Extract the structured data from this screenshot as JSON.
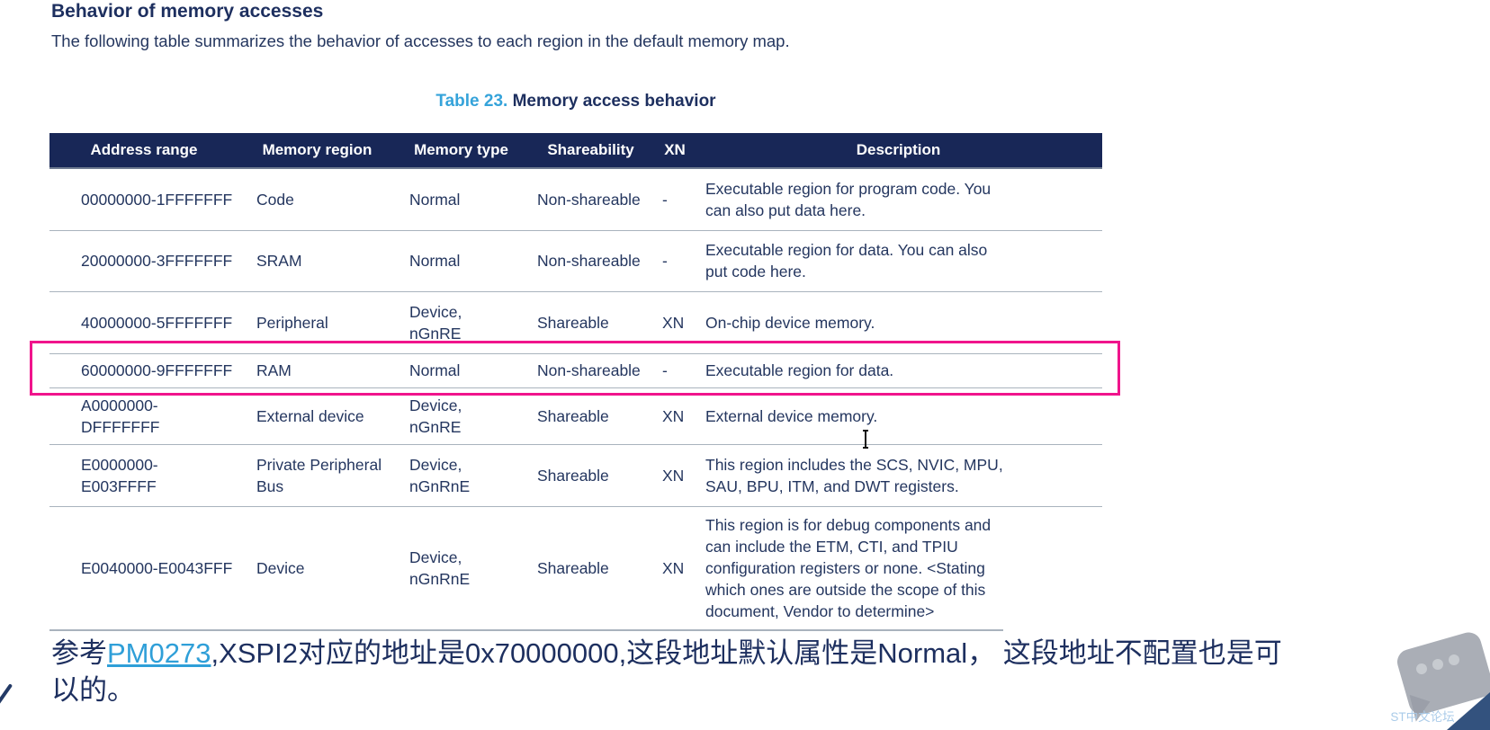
{
  "page": {
    "heading": "Behavior of memory accesses",
    "intro": "The following table summarizes the behavior of accesses to each region in the default memory map.",
    "caption_number": "Table 23.",
    "caption_title": " Memory access behavior"
  },
  "table": {
    "columns": [
      "Address range",
      "Memory region",
      "Memory type",
      "Shareability",
      "XN",
      "Description"
    ],
    "rows": [
      {
        "address": "00000000-1FFFFFFF",
        "region": "Code",
        "type": "Normal",
        "share": "Non-shareable",
        "xn": "-",
        "desc": "Executable region for program code. You\ncan also put data here.",
        "highlighted": false
      },
      {
        "address": "20000000-3FFFFFFF",
        "region": "SRAM",
        "type": "Normal",
        "share": "Non-shareable",
        "xn": "-",
        "desc": "Executable region for data. You can also\nput code here.",
        "highlighted": false
      },
      {
        "address": "40000000-5FFFFFFF",
        "region": "Peripheral",
        "type": "Device,\nnGnRE",
        "share": "Shareable",
        "xn": "XN",
        "desc": "On-chip device memory.",
        "highlighted": false
      },
      {
        "address": "60000000-9FFFFFFF",
        "region": "RAM",
        "type": "Normal",
        "share": "Non-shareable",
        "xn": "-",
        "desc": "Executable region for data.",
        "highlighted": true
      },
      {
        "address": "A0000000-DFFFFFFF",
        "region": "External device",
        "type": "Device,\nnGnRE",
        "share": "Shareable",
        "xn": "XN",
        "desc": "External device memory.",
        "highlighted": false
      },
      {
        "address": "E0000000-E003FFFF",
        "region": "Private Peripheral\nBus",
        "type": "Device,\nnGnRnE",
        "share": "Shareable",
        "xn": "XN",
        "desc": "This region includes the SCS, NVIC, MPU,\nSAU, BPU, ITM, and DWT registers.",
        "highlighted": false
      },
      {
        "address": "E0040000-E0043FFF",
        "region": "Device",
        "type": "Device,\nnGnRnE",
        "share": "Shareable",
        "xn": "XN",
        "desc": "This region is for debug components and\ncan include the ETM, CTI, and TPIU\nconfiguration registers or none. <Stating\nwhich ones are outside the scope of this\ndocument, Vendor to determine>",
        "highlighted": false
      }
    ]
  },
  "note": {
    "prefix": "参考",
    "link_label": "PM0273",
    "rest": ",XSPI2对应的地址是0x70000000,这段地址默认属性是Normal， 这段地址不配置也是可\n以的。"
  },
  "watermark": {
    "label": "ST中文论坛"
  },
  "colors": {
    "heading_navy": "#1d2f5f",
    "body_navy": "#24365f",
    "header_bg": "#182757",
    "accent_blue": "#35a3da",
    "link_blue": "#2f9fd8",
    "highlight_pink": "#f0148c",
    "separator_gray": "#a9b3bd",
    "watermark_gray": "#979ca6",
    "watermark_text": "#a6c9e8",
    "corner_triangle": "#33527e"
  }
}
